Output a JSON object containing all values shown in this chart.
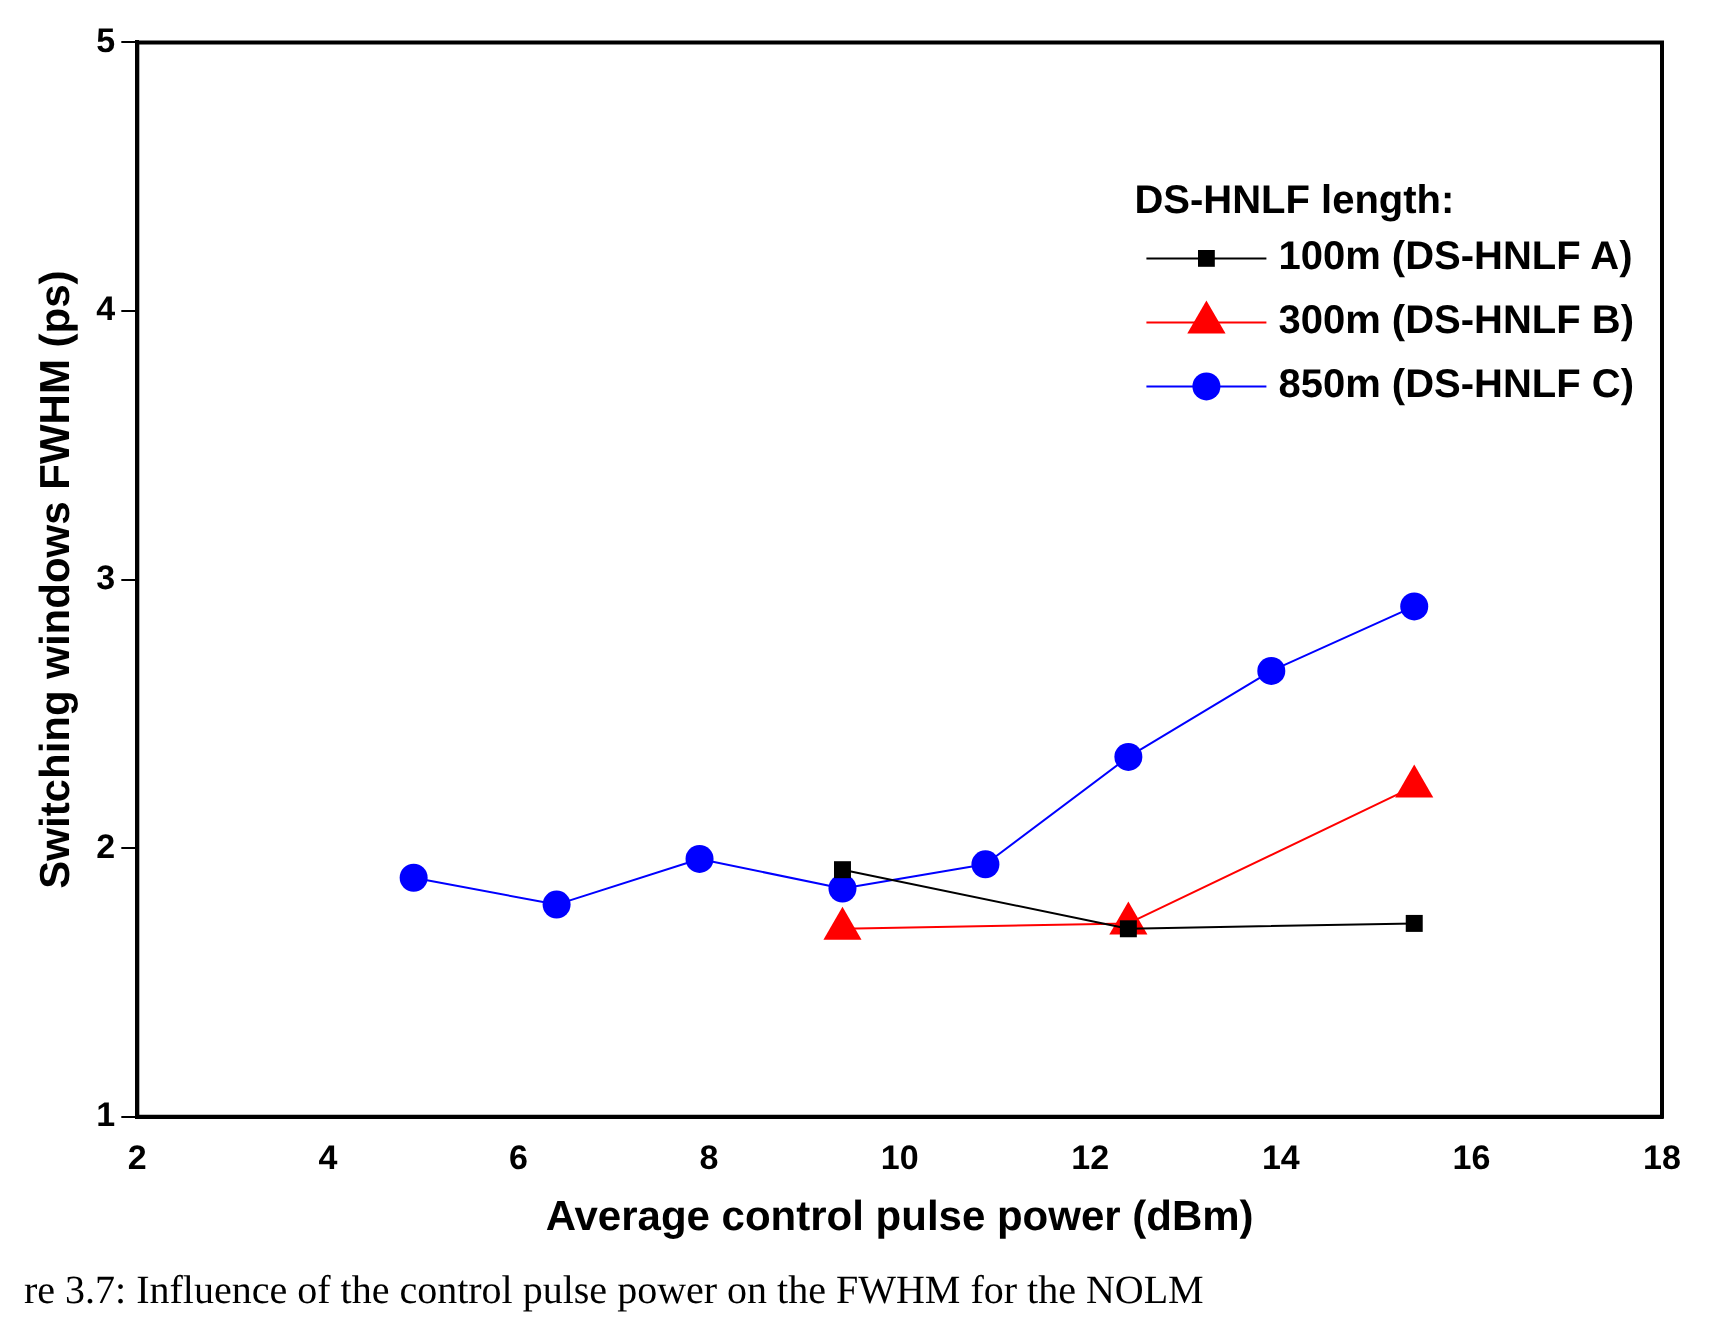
{
  "chart_data": {
    "type": "line",
    "xlabel": "Average control pulse power (dBm)",
    "ylabel": "Switching windows FWHM (ps)",
    "legend_title": "DS-HNLF length:",
    "legend": "top right",
    "grid": false,
    "line_style": "solid",
    "xlim": [
      2,
      18
    ],
    "xticks": [
      2,
      4,
      6,
      8,
      10,
      12,
      14,
      16,
      18
    ],
    "ylim": [
      1,
      5
    ],
    "yticks": [
      1,
      2,
      3,
      4,
      5
    ],
    "annotations": [
      "re 3.7: Influence of the control pulse power on the FWHM for the NOLM"
    ],
    "series": [
      {
        "name": "100m (DS-HNLF A)",
        "color": "#000000",
        "marker": "square",
        "x": [
          9.4,
          12.4,
          15.4
        ],
        "values": [
          1.92,
          1.7,
          1.72
        ]
      },
      {
        "name": "300m (DS-HNLF B)",
        "color": "#ff0000",
        "marker": "triangle",
        "x": [
          9.4,
          12.4,
          15.4
        ],
        "values": [
          1.7,
          1.72,
          2.23
        ]
      },
      {
        "name": "850m (DS-HNLF C)",
        "color": "#0000ff",
        "marker": "circle",
        "x": [
          4.9,
          6.4,
          7.9,
          9.4,
          10.9,
          12.4,
          13.9,
          15.4
        ],
        "values": [
          1.89,
          1.79,
          1.96,
          1.85,
          1.94,
          2.34,
          2.66,
          2.9
        ]
      }
    ]
  }
}
